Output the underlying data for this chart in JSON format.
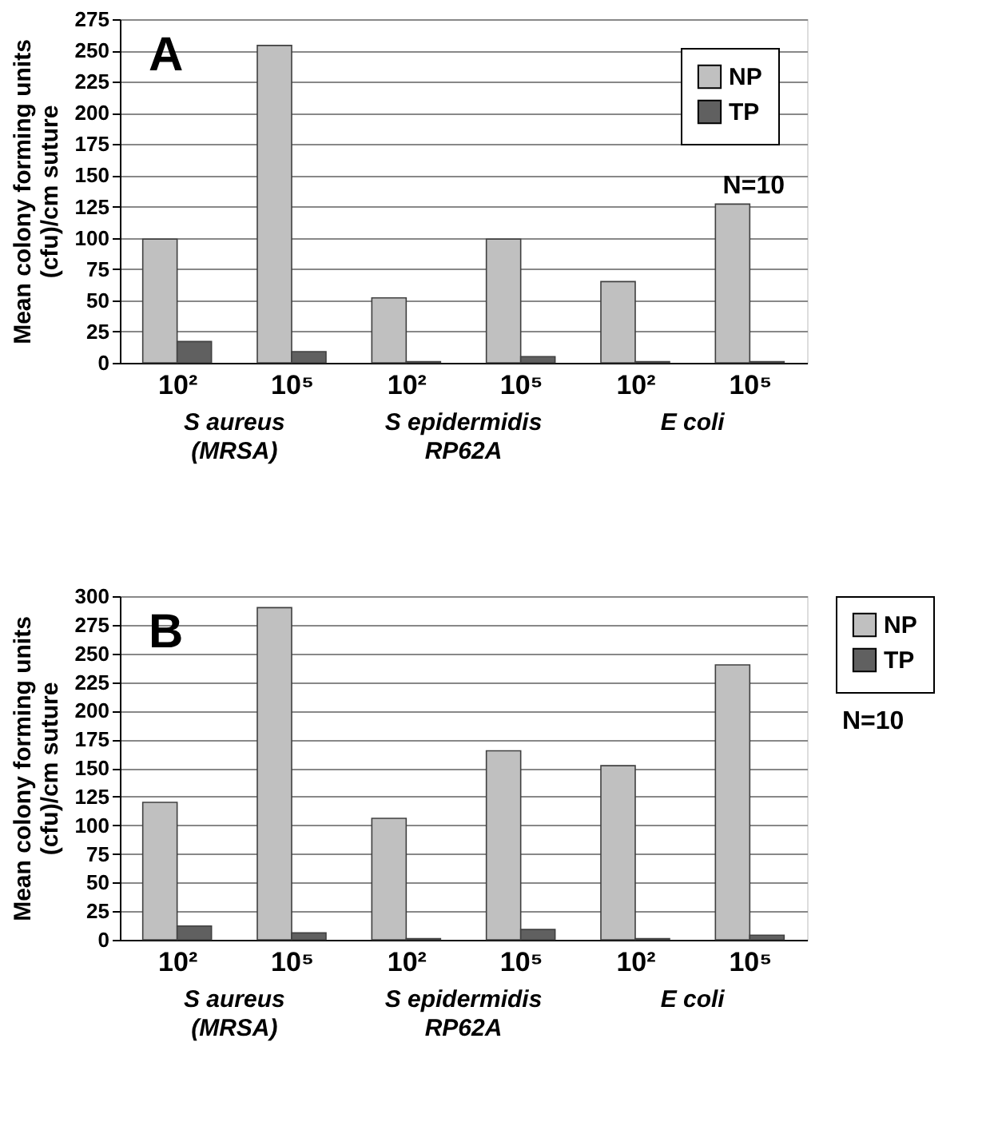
{
  "chart_data": [
    {
      "type": "bar",
      "title": "A",
      "ylabel": "Mean colony forming units\n(cfu)/cm suture",
      "categories": [
        "10²",
        "10⁵",
        "10²",
        "10⁵",
        "10²",
        "10⁵"
      ],
      "series": [
        {
          "name": "NP",
          "color": "#c0c0c0",
          "values": [
            99,
            254,
            52,
            99,
            65,
            127
          ]
        },
        {
          "name": "TP",
          "color": "#606060",
          "values": [
            17,
            9,
            1,
            5,
            1,
            1
          ]
        }
      ],
      "ylim": [
        0,
        275
      ],
      "yticks": [
        0,
        25,
        50,
        75,
        100,
        125,
        150,
        175,
        200,
        225,
        250,
        275
      ],
      "grid": "y",
      "legend": "top right",
      "annotations": [
        "S aureus\n(MRSA)",
        "S epidermidis\nRP62A",
        "E coli",
        "N=10"
      ]
    },
    {
      "type": "bar",
      "title": "B",
      "ylabel": "Mean colony forming units\n(cfu)/cm suture",
      "categories": [
        "10²",
        "10⁵",
        "10²",
        "10⁵",
        "10²",
        "10⁵"
      ],
      "series": [
        {
          "name": "NP",
          "color": "#c0c0c0",
          "values": [
            120,
            290,
            106,
            165,
            152,
            240
          ]
        },
        {
          "name": "TP",
          "color": "#606060",
          "values": [
            12,
            6,
            1,
            9,
            1,
            4
          ]
        }
      ],
      "ylim": [
        0,
        300
      ],
      "yticks": [
        0,
        25,
        50,
        75,
        100,
        125,
        150,
        175,
        200,
        225,
        250,
        275,
        300
      ],
      "grid": "y",
      "legend": "right",
      "annotations": [
        "S aureus\n(MRSA)",
        "S epidermidis\nRP62A",
        "E coli",
        "N=10"
      ]
    }
  ]
}
